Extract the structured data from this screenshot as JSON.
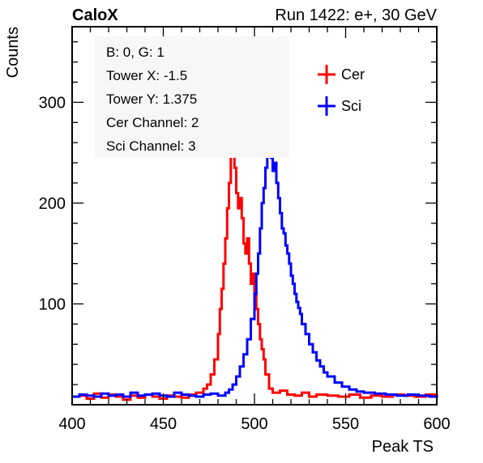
{
  "header": {
    "left_title": "CaloX",
    "right_title": "Run 1422: e+, 30 GeV"
  },
  "info_box": {
    "lines": [
      "B: 0, G: 1",
      "Tower X: -1.5",
      "Tower Y: 1.375",
      "Cer Channel: 2",
      "Sci Channel: 3"
    ]
  },
  "colors": {
    "cer": "#ff0000",
    "sci": "#0000ff",
    "axis": "#000000",
    "info_box_bg": "#f7f7f7"
  },
  "chart_data": {
    "type": "line",
    "xlabel": "Peak TS",
    "ylabel": "Counts",
    "xlim": [
      400,
      600
    ],
    "ylim": [
      0,
      375
    ],
    "x_ticks": [
      400,
      450,
      500,
      550,
      600
    ],
    "y_ticks": [
      100,
      200,
      300
    ],
    "legend": {
      "placement": "top-right",
      "entries": [
        "Cer",
        "Sci"
      ]
    },
    "series": [
      {
        "name": "Cer",
        "color": "#ff0000",
        "x": [
          400,
          404,
          408,
          412,
          416,
          420,
          424,
          428,
          432,
          436,
          440,
          444,
          448,
          452,
          456,
          460,
          464,
          468,
          472,
          474,
          476,
          478,
          480,
          481,
          482,
          483,
          484,
          485,
          486,
          487,
          488,
          489,
          490,
          491,
          492,
          493,
          494,
          495,
          496,
          497,
          498,
          499,
          500,
          501,
          502,
          503,
          504,
          505,
          506,
          508,
          510,
          514,
          518,
          522,
          526,
          530,
          534,
          540,
          546,
          552,
          558,
          564,
          570,
          576,
          582,
          588,
          594,
          600
        ],
        "values": [
          8,
          9,
          6,
          11,
          7,
          10,
          8,
          5,
          9,
          7,
          10,
          8,
          6,
          9,
          8,
          7,
          10,
          12,
          16,
          20,
          30,
          45,
          70,
          95,
          115,
          140,
          165,
          195,
          220,
          253,
          250,
          235,
          210,
          195,
          205,
          185,
          160,
          150,
          165,
          140,
          120,
          130,
          110,
          95,
          80,
          65,
          55,
          45,
          30,
          16,
          12,
          14,
          10,
          9,
          12,
          8,
          10,
          9,
          8,
          10,
          7,
          9,
          8,
          10,
          9,
          8,
          10,
          9
        ]
      },
      {
        "name": "Sci",
        "color": "#0000ff",
        "x": [
          400,
          404,
          408,
          412,
          416,
          420,
          424,
          428,
          432,
          436,
          440,
          444,
          448,
          452,
          456,
          460,
          464,
          468,
          472,
          476,
          480,
          484,
          486,
          488,
          490,
          492,
          494,
          496,
          498,
          500,
          501,
          502,
          503,
          504,
          505,
          506,
          507,
          508,
          509,
          510,
          511,
          512,
          513,
          514,
          515,
          516,
          517,
          518,
          519,
          520,
          521,
          522,
          523,
          524,
          525,
          526,
          528,
          530,
          532,
          534,
          536,
          538,
          540,
          544,
          548,
          552,
          556,
          560,
          566,
          572,
          578,
          584,
          590,
          596,
          600
        ],
        "values": [
          8,
          10,
          9,
          8,
          11,
          9,
          10,
          8,
          12,
          9,
          10,
          11,
          9,
          8,
          12,
          10,
          9,
          8,
          10,
          11,
          9,
          12,
          15,
          20,
          28,
          38,
          50,
          65,
          85,
          110,
          130,
          150,
          175,
          200,
          215,
          235,
          250,
          253,
          245,
          232,
          240,
          220,
          205,
          190,
          175,
          170,
          158,
          150,
          140,
          128,
          120,
          110,
          102,
          96,
          90,
          80,
          70,
          60,
          52,
          44,
          38,
          32,
          28,
          22,
          18,
          15,
          13,
          12,
          11,
          10,
          9,
          10,
          9,
          8,
          9
        ]
      }
    ]
  }
}
